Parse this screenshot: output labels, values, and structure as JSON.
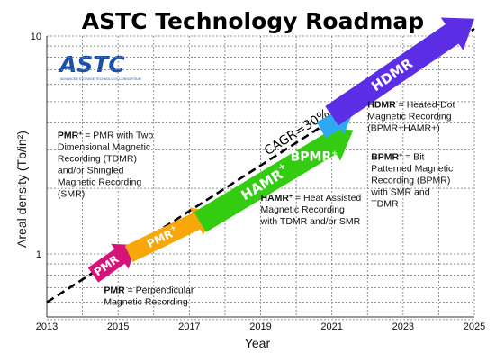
{
  "chart_data": {
    "type": "line",
    "title": "ASTC Technology Roadmap",
    "xlabel": "Year",
    "ylabel": "Areal density (Tb/in²)",
    "xlim": [
      2013,
      2025
    ],
    "ylim": [
      0.5,
      10
    ],
    "yscale": "log",
    "grid": true,
    "x_ticks": [
      "2013",
      "2015",
      "2017",
      "2019",
      "2021",
      "2023",
      "2025"
    ],
    "y_ticks": [
      "1",
      "10"
    ],
    "trend": {
      "label": "CAGR=30%",
      "x": [
        2013,
        2025
      ],
      "y": [
        0.6,
        10.8
      ]
    },
    "arrows": [
      {
        "label": "PMR",
        "color": "#d6137b",
        "x": [
          2014.3,
          2015.5
        ],
        "y": [
          0.8,
          1.1
        ]
      },
      {
        "label": "PMR",
        "superscript": "+",
        "color": "#f7a70a",
        "x": [
          2015.3,
          2017.7
        ],
        "y": [
          1.0,
          1.55
        ]
      },
      {
        "label": "HAMR",
        "superscript": "+",
        "color": "#33cc11",
        "x": [
          2017.3,
          2021.6
        ],
        "y": [
          1.4,
          3.7
        ]
      },
      {
        "label": "BPMR",
        "superscript": "+",
        "color": "#2ea8f0",
        "x": [
          2020.7,
          2021.6
        ],
        "y": [
          3.7,
          4.5
        ]
      },
      {
        "label": "HDMR",
        "color": "#5b2ee6",
        "x": [
          2021.0,
          2025.0
        ],
        "y": [
          4.3,
          12.0
        ]
      }
    ],
    "annotations": [
      {
        "lines": [
          [
            "PMR",
            " = Perpendicular"
          ],
          [
            "",
            "Magnetic Recording"
          ]
        ],
        "x": 2014.6,
        "y": 0.66
      },
      {
        "lines": [
          [
            "PMR+",
            " = PMR with Two"
          ],
          [
            "",
            "Dimensional Magnetic"
          ],
          [
            "",
            "Recording (TDMR)"
          ],
          [
            "",
            "and/or Shingled"
          ],
          [
            "",
            "Magnetic Recording"
          ],
          [
            "",
            "(SMR)"
          ]
        ],
        "x": 2013.3,
        "y": 3.4
      },
      {
        "lines": [
          [
            "HAMR+",
            " = Heat Assisted"
          ],
          [
            "",
            "Magnetic Recording"
          ],
          [
            "",
            "with TDMR and/or SMR"
          ]
        ],
        "x": 2019.0,
        "y": 1.75
      },
      {
        "lines": [
          [
            "HDMR",
            " = Heated-Dot"
          ],
          [
            "",
            "Magnetic Recording"
          ],
          [
            "",
            "(BPMR+HAMR+)"
          ]
        ],
        "x": 2022.0,
        "y": 4.7
      },
      {
        "lines": [
          [
            "BPMR+",
            " = Bit"
          ],
          [
            "",
            "Patterned Magnetic"
          ],
          [
            "",
            "Recording (BPMR)"
          ],
          [
            "",
            "with SMR and"
          ],
          [
            "",
            "TDMR"
          ]
        ],
        "x": 2022.1,
        "y": 2.7
      }
    ]
  },
  "logo": {
    "text": "ASTC",
    "tagline": "ADVANCED STORAGE TECHNOLOGY CONSORTIUM",
    "color": "#1e4fa8"
  }
}
